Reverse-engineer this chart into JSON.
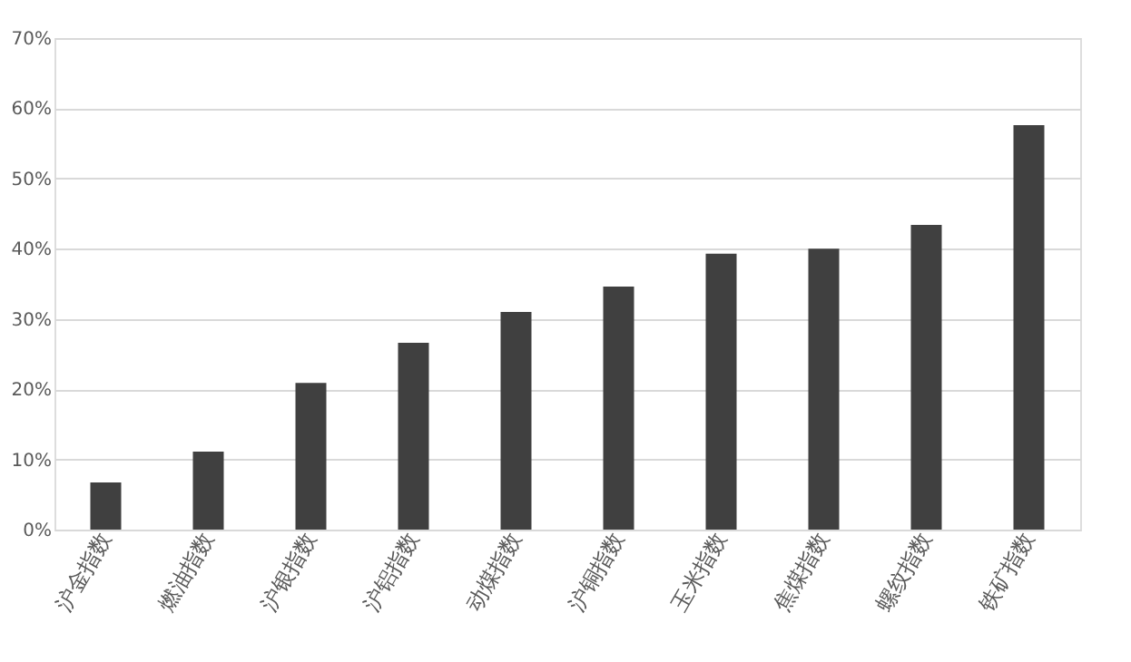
{
  "chart_data": {
    "type": "bar",
    "categories": [
      "沪金指数",
      "燃油指数",
      "沪银指数",
      "沪铝指数",
      "动煤指数",
      "沪铜指数",
      "玉米指数",
      "焦煤指数",
      "螺纹指数",
      "铁矿指数"
    ],
    "values": [
      6.7,
      11.1,
      20.9,
      26.6,
      31.0,
      34.6,
      39.3,
      40.0,
      43.4,
      57.6
    ],
    "color": "#404040",
    "ylim": [
      0,
      70
    ],
    "yticks": [
      {
        "value": 0,
        "label": "0%"
      },
      {
        "value": 10,
        "label": "10%"
      },
      {
        "value": 20,
        "label": "20%"
      },
      {
        "value": 30,
        "label": "30%"
      },
      {
        "value": 40,
        "label": "40%"
      },
      {
        "value": 50,
        "label": "50%"
      },
      {
        "value": 60,
        "label": "60%"
      },
      {
        "value": 70,
        "label": "70%"
      }
    ],
    "grid": "y"
  }
}
